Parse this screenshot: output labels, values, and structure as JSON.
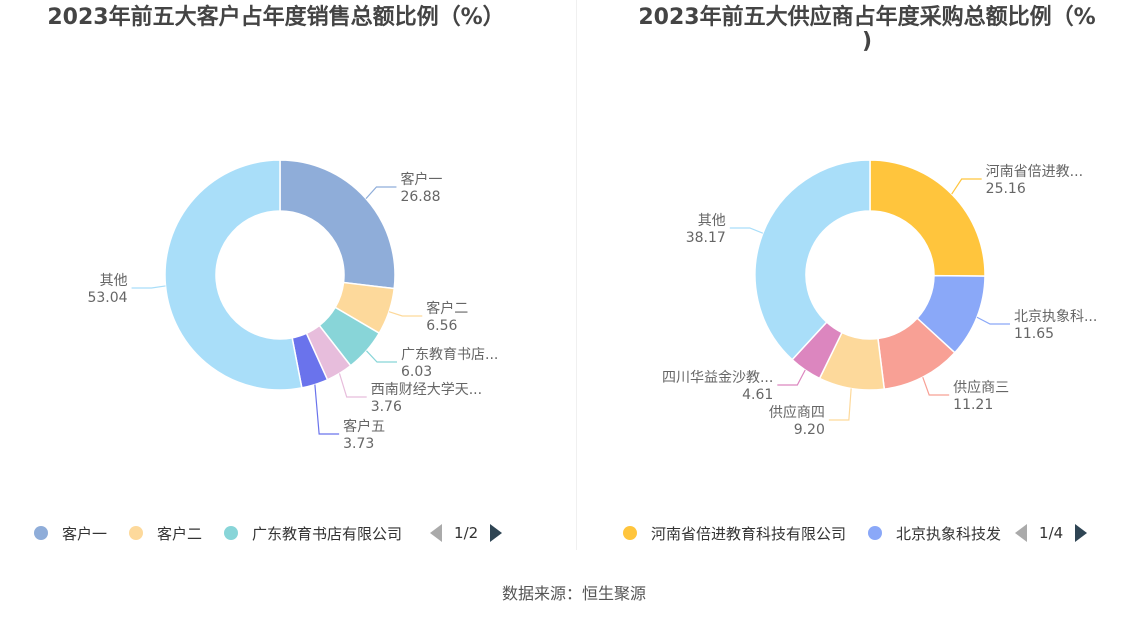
{
  "chart_data": [
    {
      "type": "pie",
      "variant": "donut",
      "title": "2023年前五大客户占年度销售总额比例（%）",
      "slices": [
        {
          "name": "客户一",
          "short": "客户一",
          "value": 26.88,
          "value_label": "26.88",
          "color": "#8fadd9"
        },
        {
          "name": "客户二",
          "short": "客户二",
          "value": 6.56,
          "value_label": "6.56",
          "color": "#fdd99b"
        },
        {
          "name": "广东教育书店有限公司",
          "short": "广东教育书店...",
          "value": 6.03,
          "value_label": "6.03",
          "color": "#88d5d8"
        },
        {
          "name": "西南财经大学天...",
          "short": "西南财经大学天...",
          "value": 3.76,
          "value_label": "3.76",
          "color": "#e7bddc"
        },
        {
          "name": "客户五",
          "short": "客户五",
          "value": 3.73,
          "value_label": "3.73",
          "color": "#6a73ec"
        },
        {
          "name": "其他",
          "short": "其他",
          "value": 53.04,
          "value_label": "53.04",
          "color": "#a9def9"
        }
      ],
      "legend": {
        "visible_items": [
          "客户一",
          "客户二",
          "广东教育书店有限公司"
        ],
        "page": "1/2"
      }
    },
    {
      "type": "pie",
      "variant": "donut",
      "title": "2023年前五大供应商占年度采购总额比例（%",
      "title_line2": ")",
      "slices": [
        {
          "name": "河南省倍进教育科技有限公司",
          "short": "河南省倍进教...",
          "value": 25.16,
          "value_label": "25.16",
          "color": "#ffc53d"
        },
        {
          "name": "北京执象科技发",
          "short": "北京执象科...",
          "value": 11.65,
          "value_label": "11.65",
          "color": "#8aa8f8"
        },
        {
          "name": "供应商三",
          "short": "供应商三",
          "value": 11.21,
          "value_label": "11.21",
          "color": "#f8a095"
        },
        {
          "name": "供应商四",
          "short": "供应商四",
          "value": 9.2,
          "value_label": "9.20",
          "color": "#fdd99b"
        },
        {
          "name": "四川华益金沙教...",
          "short": "四川华益金沙教...",
          "value": 4.61,
          "value_label": "4.61",
          "color": "#dc86bf"
        },
        {
          "name": "其他",
          "short": "其他",
          "value": 38.17,
          "value_label": "38.17",
          "color": "#a9def9"
        }
      ],
      "legend": {
        "visible_items": [
          "河南省倍进教育科技有限公司",
          "北京执象科技发"
        ],
        "page": "1/4"
      }
    }
  ],
  "footer": {
    "source": "数据来源：恒生聚源"
  }
}
